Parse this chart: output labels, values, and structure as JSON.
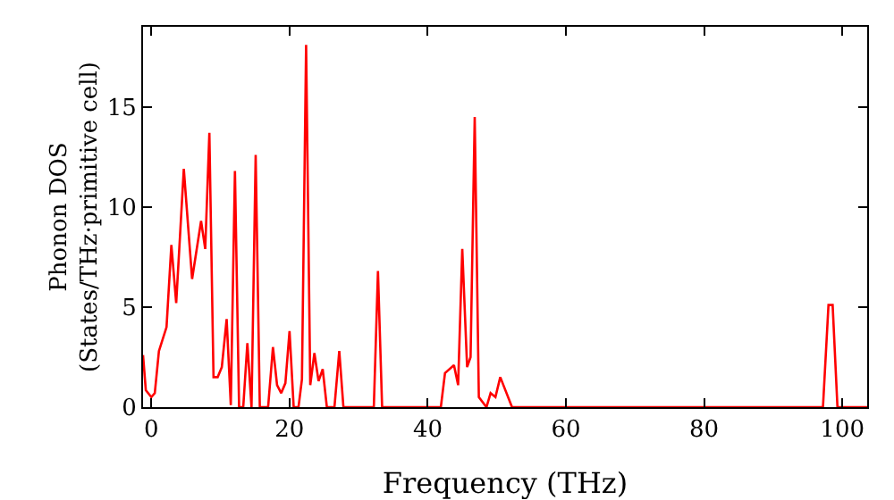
{
  "chart_data": {
    "type": "line",
    "xlabel": "Frequency (THz)",
    "ylabel": "Phonon DOS\n(States/THz·primitive cell)",
    "series": [
      {
        "color": "#ff0000",
        "x": [
          -1.2,
          -0.8,
          0,
          0.5,
          1.1,
          2.2,
          2.9,
          3.6,
          4.7,
          5.9,
          7.2,
          7.8,
          8.4,
          9.0,
          9.6,
          10.2,
          10.9,
          11.5,
          12.1,
          12.7,
          13.3,
          13.9,
          14.5,
          15.1,
          15.7,
          16.9,
          17.6,
          18.2,
          18.8,
          19.4,
          20.0,
          20.6,
          21.3,
          21.8,
          22.4,
          23.0,
          23.6,
          24.2,
          24.8,
          25.4,
          26.5,
          27.2,
          27.8,
          32.2,
          32.8,
          33.4,
          41.9,
          42.5,
          43.8,
          44.4,
          45.0,
          45.7,
          46.2,
          46.8,
          47.4,
          48.5,
          49.1,
          49.8,
          50.5,
          52.2,
          97.2,
          98.0,
          98.6,
          99.3,
          103.6
        ],
        "values": [
          2.6,
          0.85,
          0.5,
          0.7,
          2.8,
          4.0,
          8.1,
          5.2,
          11.9,
          6.4,
          9.3,
          7.9,
          13.7,
          1.5,
          1.5,
          2.0,
          4.4,
          0.1,
          11.8,
          0,
          0,
          3.2,
          0,
          12.6,
          0,
          0,
          3.0,
          1.1,
          0.7,
          1.2,
          3.8,
          0,
          0,
          1.4,
          18.1,
          1.1,
          2.7,
          1.3,
          1.9,
          0,
          0,
          2.8,
          0,
          0,
          6.8,
          0,
          0,
          1.7,
          2.1,
          1.1,
          7.9,
          2.0,
          2.5,
          14.5,
          0.5,
          0,
          0.7,
          0.5,
          1.5,
          0,
          0,
          5.1,
          5.1,
          0,
          0
        ]
      }
    ],
    "xlim": [
      -1.2,
      103.6
    ],
    "ylim": [
      0,
      19
    ],
    "xticks": [
      0,
      20,
      40,
      60,
      80,
      100
    ],
    "yticks": [
      0,
      5,
      10,
      15
    ],
    "grid": false,
    "legend": false,
    "marker": "none",
    "line_style": "solid"
  }
}
